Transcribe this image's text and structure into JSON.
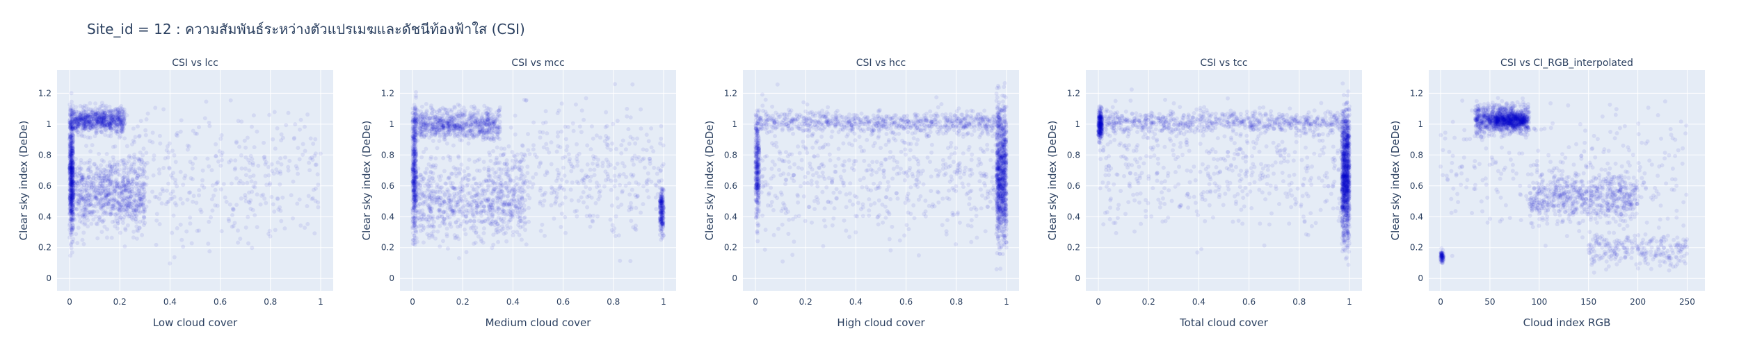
{
  "figure": {
    "title": "Site_id = 12 : ความสัมพันธ์ระหว่างตัวแปรเมฆและดัชนีท้องฟ้าใส (CSI)"
  },
  "colors": {
    "plot_background": "#E5ECF6",
    "grid": "#ffffff",
    "marker": "#0000CC",
    "text": "#2a3f5f"
  },
  "chart_data": [
    {
      "type": "scatter",
      "title": "CSI vs lcc",
      "xlabel": "Low cloud cover",
      "ylabel": "Clear sky index (DeDe)",
      "xlim": [
        -0.05,
        1.05
      ],
      "ylim": [
        -0.08,
        1.35
      ],
      "xticks": [
        0,
        0.2,
        0.4,
        0.6,
        0.8,
        1
      ],
      "xtick_labels": [
        "0",
        "0.2",
        "0.4",
        "0.6",
        "0.8",
        "1"
      ],
      "yticks": [
        0,
        0.2,
        0.4,
        0.6,
        0.8,
        1,
        1.2
      ],
      "ytick_labels": [
        "0",
        "0.2",
        "0.4",
        "0.6",
        "0.8",
        "1",
        "1.2"
      ],
      "grid": true,
      "marker_opacity": 0.08,
      "clusters": [
        {
          "x": [
            0.0,
            0.015
          ],
          "y": [
            0.05,
            1.3
          ],
          "weight": 0.22
        },
        {
          "x": [
            0.0,
            0.22
          ],
          "y": [
            0.9,
            1.15
          ],
          "weight": 0.3
        },
        {
          "x": [
            0.0,
            0.3
          ],
          "y": [
            0.2,
            0.9
          ],
          "weight": 0.33
        },
        {
          "x": [
            0.2,
            1.0
          ],
          "y": [
            0.05,
            1.3
          ],
          "weight": 0.15
        }
      ]
    },
    {
      "type": "scatter",
      "title": "CSI vs mcc",
      "xlabel": "Medium cloud cover",
      "ylabel": "Clear sky index (DeDe)",
      "xlim": [
        -0.05,
        1.05
      ],
      "ylim": [
        -0.08,
        1.35
      ],
      "xticks": [
        0,
        0.2,
        0.4,
        0.6,
        0.8,
        1
      ],
      "xtick_labels": [
        "0",
        "0.2",
        "0.4",
        "0.6",
        "0.8",
        "1"
      ],
      "yticks": [
        0,
        0.2,
        0.4,
        0.6,
        0.8,
        1,
        1.2
      ],
      "ytick_labels": [
        "0",
        "0.2",
        "0.4",
        "0.6",
        "0.8",
        "1",
        "1.2"
      ],
      "grid": true,
      "marker_opacity": 0.08,
      "clusters": [
        {
          "x": [
            0.0,
            0.015
          ],
          "y": [
            0.05,
            1.3
          ],
          "weight": 0.15
        },
        {
          "x": [
            0.0,
            0.35
          ],
          "y": [
            0.85,
            1.15
          ],
          "weight": 0.3
        },
        {
          "x": [
            0.0,
            0.45
          ],
          "y": [
            0.1,
            0.9
          ],
          "weight": 0.3
        },
        {
          "x": [
            0.3,
            1.0
          ],
          "y": [
            0.05,
            1.3
          ],
          "weight": 0.17
        },
        {
          "x": [
            0.985,
            1.0
          ],
          "y": [
            0.2,
            0.7
          ],
          "weight": 0.08
        }
      ]
    },
    {
      "type": "scatter",
      "title": "CSI vs hcc",
      "xlabel": "High cloud cover",
      "ylabel": "Clear sky index (DeDe)",
      "xlim": [
        -0.05,
        1.05
      ],
      "ylim": [
        -0.08,
        1.35
      ],
      "xticks": [
        0,
        0.2,
        0.4,
        0.6,
        0.8,
        1
      ],
      "xtick_labels": [
        "0",
        "0.2",
        "0.4",
        "0.6",
        "0.8",
        "1"
      ],
      "yticks": [
        0,
        0.2,
        0.4,
        0.6,
        0.8,
        1,
        1.2
      ],
      "ytick_labels": [
        "0",
        "0.2",
        "0.4",
        "0.6",
        "0.8",
        "1",
        "1.2"
      ],
      "grid": true,
      "marker_opacity": 0.08,
      "clusters": [
        {
          "x": [
            0.0,
            0.015
          ],
          "y": [
            0.2,
            1.25
          ],
          "weight": 0.12
        },
        {
          "x": [
            0.0,
            1.0
          ],
          "y": [
            0.9,
            1.12
          ],
          "weight": 0.3
        },
        {
          "x": [
            0.0,
            1.0
          ],
          "y": [
            0.05,
            1.3
          ],
          "weight": 0.23
        },
        {
          "x": [
            0.96,
            1.0
          ],
          "y": [
            0.02,
            1.3
          ],
          "weight": 0.35
        }
      ]
    },
    {
      "type": "scatter",
      "title": "CSI vs tcc",
      "xlabel": "Total cloud cover",
      "ylabel": "Clear sky index (DeDe)",
      "xlim": [
        -0.05,
        1.05
      ],
      "ylim": [
        -0.08,
        1.35
      ],
      "xticks": [
        0,
        0.2,
        0.4,
        0.6,
        0.8,
        1
      ],
      "xtick_labels": [
        "0",
        "0.2",
        "0.4",
        "0.6",
        "0.8",
        "1"
      ],
      "yticks": [
        0,
        0.2,
        0.4,
        0.6,
        0.8,
        1,
        1.2
      ],
      "ytick_labels": [
        "0",
        "0.2",
        "0.4",
        "0.6",
        "0.8",
        "1",
        "1.2"
      ],
      "grid": true,
      "marker_opacity": 0.08,
      "clusters": [
        {
          "x": [
            0.0,
            0.015
          ],
          "y": [
            0.85,
            1.15
          ],
          "weight": 0.1
        },
        {
          "x": [
            0.0,
            1.0
          ],
          "y": [
            0.9,
            1.12
          ],
          "weight": 0.28
        },
        {
          "x": [
            0.0,
            1.0
          ],
          "y": [
            0.1,
            1.3
          ],
          "weight": 0.2
        },
        {
          "x": [
            0.97,
            1.0
          ],
          "y": [
            0.02,
            1.3
          ],
          "weight": 0.42
        }
      ]
    },
    {
      "type": "scatter",
      "title": "CSI vs CI_RGB_interpolated",
      "xlabel": "Cloud index RGB",
      "ylabel": "Clear sky index (DeDe)",
      "xlim": [
        -12,
        268
      ],
      "ylim": [
        -0.08,
        1.35
      ],
      "xticks": [
        0,
        50,
        100,
        150,
        200,
        250
      ],
      "xtick_labels": [
        "0",
        "50",
        "100",
        "150",
        "200",
        "250"
      ],
      "yticks": [
        0,
        0.2,
        0.4,
        0.6,
        0.8,
        1,
        1.2
      ],
      "ytick_labels": [
        "0",
        "0.2",
        "0.4",
        "0.6",
        "0.8",
        "1",
        "1.2"
      ],
      "grid": true,
      "marker_opacity": 0.08,
      "clusters": [
        {
          "x": [
            35,
            90
          ],
          "y": [
            0.88,
            1.18
          ],
          "weight": 0.35
        },
        {
          "x": [
            55,
            85
          ],
          "y": [
            0.95,
            1.1
          ],
          "weight": 0.15
        },
        {
          "x": [
            90,
            200
          ],
          "y": [
            0.3,
            0.75
          ],
          "weight": 0.25
        },
        {
          "x": [
            150,
            250
          ],
          "y": [
            0.02,
            0.35
          ],
          "weight": 0.1
        },
        {
          "x": [
            0,
            250
          ],
          "y": [
            0.05,
            1.3
          ],
          "weight": 0.12
        },
        {
          "x": [
            0,
            3
          ],
          "y": [
            0.08,
            0.2
          ],
          "weight": 0.03
        }
      ]
    }
  ]
}
